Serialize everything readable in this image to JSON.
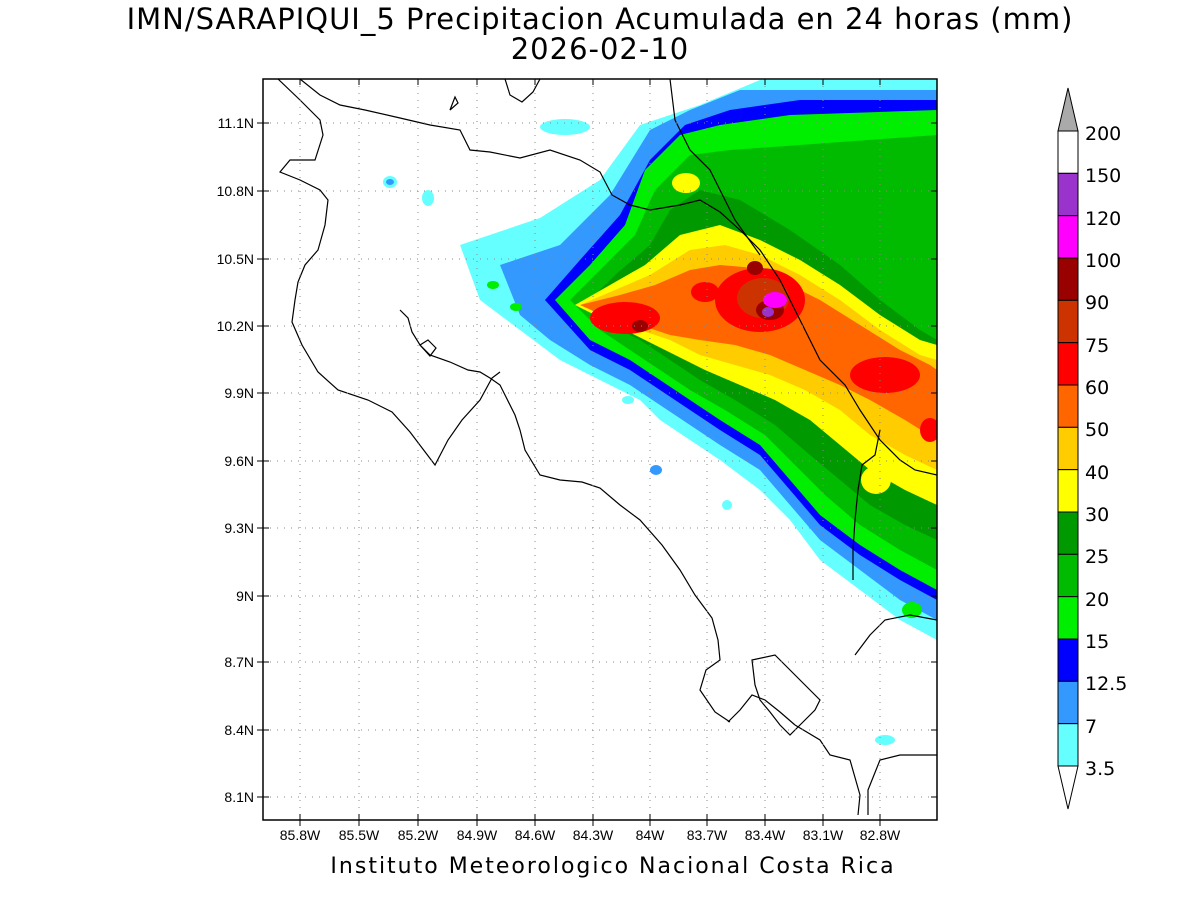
{
  "title": {
    "line1": "IMN/SARAPIQUI_5 Precipitacion Acumulada en 24 horas (mm)",
    "line2": "2026-02-10"
  },
  "footer": "Instituto Meteorologico Nacional Costa Rica",
  "map": {
    "lon_labels": [
      "85.8W",
      "85.5W",
      "85.2W",
      "84.9W",
      "84.6W",
      "84.3W",
      "84W",
      "83.7W",
      "83.4W",
      "83.1W",
      "82.8W"
    ],
    "lat_labels": [
      "11.1N",
      "10.8N",
      "10.5N",
      "10.2N",
      "9.9N",
      "9.6N",
      "9.3N",
      "9N",
      "8.7N",
      "8.4N",
      "8.1N"
    ],
    "grid": "dotted"
  },
  "legend": {
    "levels": [
      "200",
      "150",
      "120",
      "100",
      "90",
      "75",
      "60",
      "50",
      "40",
      "30",
      "25",
      "20",
      "15",
      "12.5",
      "7",
      "3.5"
    ],
    "colors": [
      "#ffffff",
      "#9933cc",
      "#ff00ff",
      "#990000",
      "#cc3300",
      "#ff0000",
      "#ff6600",
      "#ffcc00",
      "#ffff00",
      "#009900",
      "#00bb00",
      "#00ee00",
      "#0000ff",
      "#3399ff",
      "#66ffff"
    ],
    "over_color": "#aaaaaa",
    "under_color": "#ffffff"
  }
}
